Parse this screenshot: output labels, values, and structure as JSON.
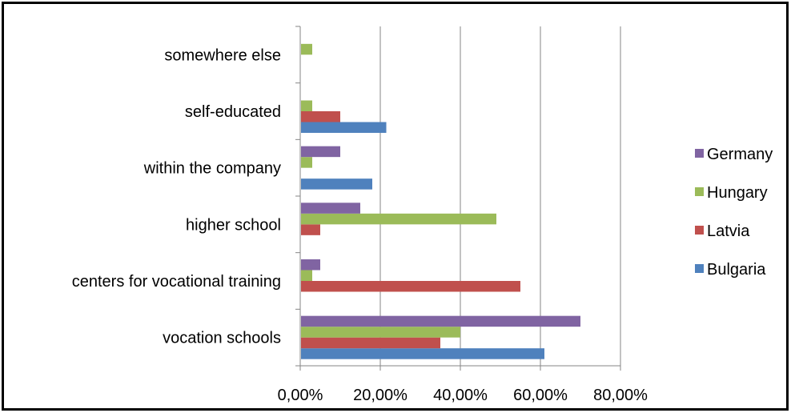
{
  "chart_data": {
    "type": "bar",
    "orientation": "horizontal",
    "categories": [
      "vocation schools",
      "centers for vocational training",
      "higher school",
      "within the company",
      "self-educated",
      "somewhere else"
    ],
    "series": [
      {
        "name": "Bulgaria",
        "color": "#4F81BD",
        "values": [
          61,
          0,
          0,
          18,
          21.5,
          0
        ]
      },
      {
        "name": "Latvia",
        "color": "#C0504D",
        "values": [
          35,
          55,
          5,
          0,
          10,
          0
        ]
      },
      {
        "name": "Hungary",
        "color": "#9BBB59",
        "values": [
          40,
          3,
          49,
          3,
          3,
          3
        ]
      },
      {
        "name": "Germany",
        "color": "#8064A2",
        "values": [
          70,
          5,
          15,
          10,
          0,
          0
        ]
      }
    ],
    "xticks": [
      "0,00%",
      "20,00%",
      "40,00%",
      "60,00%",
      "80,00%"
    ],
    "xlim": [
      0,
      80
    ],
    "grid": true,
    "legend_position": "right",
    "legend_order": [
      "Germany",
      "Hungary",
      "Latvia",
      "Bulgaria"
    ]
  }
}
